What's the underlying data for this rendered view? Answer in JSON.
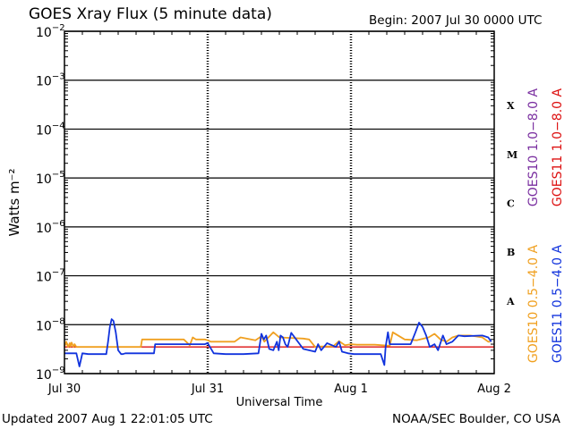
{
  "header": {
    "title": "GOES Xray Flux (5 minute data)",
    "begin": "Begin:  2007 Jul 30 0000 UTC"
  },
  "footer": {
    "updated": "Updated 2007 Aug  1 22:01:05 UTC",
    "credit": "NOAA/SEC Boulder, CO USA"
  },
  "colors": {
    "goes10_long": "#7a2fa0",
    "goes11_long": "#dd1111",
    "goes10_short": "#f0a020",
    "goes11_short": "#1133dd",
    "grid": "#000000"
  },
  "chart_data": {
    "type": "line",
    "title": "GOES Xray Flux (5 minute data)",
    "xlabel": "Universal Time",
    "ylabel": "Watts m⁻²",
    "y_scale": "log",
    "ylim": [
      1e-09,
      0.01
    ],
    "xlim": [
      0,
      72
    ],
    "x_units": "hours since 2007 Jul 30 0000 UTC",
    "y_ticks": [
      {
        "value": 1e-09,
        "base": "10",
        "exp": "−9"
      },
      {
        "value": 1e-08,
        "base": "10",
        "exp": "−8"
      },
      {
        "value": 1e-07,
        "base": "10",
        "exp": "−7"
      },
      {
        "value": 1e-06,
        "base": "10",
        "exp": "−6"
      },
      {
        "value": 1e-05,
        "base": "10",
        "exp": "−5"
      },
      {
        "value": 0.0001,
        "base": "10",
        "exp": "−4"
      },
      {
        "value": 0.001,
        "base": "10",
        "exp": "−3"
      },
      {
        "value": 0.01,
        "base": "10",
        "exp": "−2"
      }
    ],
    "x_ticks": [
      {
        "x": 0,
        "label": "Jul 30"
      },
      {
        "x": 24,
        "label": "Jul 31"
      },
      {
        "x": 48,
        "label": "Aug 1"
      },
      {
        "x": 72,
        "label": "Aug 2"
      }
    ],
    "flare_classes": [
      {
        "label": "A",
        "value": 3.16e-08
      },
      {
        "label": "B",
        "value": 3.16e-07
      },
      {
        "label": "C",
        "value": 3.16e-06
      },
      {
        "label": "M",
        "value": 3.16e-05
      },
      {
        "label": "X",
        "value": 0.000316
      }
    ],
    "series": [
      {
        "name": "GOES10 1.0−8.0 A",
        "color": "#7a2fa0",
        "x": [],
        "y": []
      },
      {
        "name": "GOES11 1.0−8.0 A",
        "color": "#dd1111",
        "x": [
          0,
          72
        ],
        "y": [
          3.5e-09,
          3.5e-09
        ]
      },
      {
        "name": "GOES10 0.5−4.0 A",
        "color": "#f0a020",
        "x": [
          0,
          0.3,
          0.6,
          0.9,
          1.0,
          1.2,
          1.5,
          1.7,
          2.0,
          12.8,
          13.0,
          15.0,
          17.0,
          20.0,
          21.0,
          21.5,
          22.0,
          23.5,
          24.0,
          24.5,
          28.5,
          29.5,
          32.0,
          33.0,
          33.5,
          35.0,
          36.0,
          40.0,
          41.0,
          42.0,
          43.0,
          45.0,
          46.0,
          47.0,
          48.0,
          49.0,
          52.0,
          54.5,
          55.0,
          57.0,
          59.0,
          61.0,
          62.0,
          63.0,
          64.0,
          65.0,
          66.0,
          68.0,
          70.0,
          71.0,
          71.3
        ],
        "y": [
          3.6e-09,
          4.5e-09,
          3.5e-09,
          4.2e-09,
          3.6e-09,
          4.3e-09,
          3.5e-09,
          4e-09,
          3.5e-09,
          3.5e-09,
          5e-09,
          5e-09,
          5e-09,
          5e-09,
          3.8e-09,
          5.5e-09,
          5e-09,
          5e-09,
          4.8e-09,
          4.5e-09,
          4.5e-09,
          5.5e-09,
          4.8e-09,
          5.8e-09,
          4.5e-09,
          7e-09,
          5.5e-09,
          5.2e-09,
          5e-09,
          3.5e-09,
          3.6e-09,
          3.6e-09,
          4.6e-09,
          3.8e-09,
          4e-09,
          3.9e-09,
          3.9e-09,
          3.7e-09,
          7e-09,
          5e-09,
          4.8e-09,
          5.5e-09,
          6.5e-09,
          5e-09,
          4.5e-09,
          5.5e-09,
          6e-09,
          6e-09,
          5.5e-09,
          4.5e-09,
          4.5e-09
        ]
      },
      {
        "name": "GOES11 0.5−4.0 A",
        "color": "#1133dd",
        "x": [
          0,
          2.0,
          2.5,
          3.0,
          4.0,
          7.0,
          7.3,
          7.6,
          7.9,
          8.2,
          8.6,
          9.0,
          9.5,
          9.8,
          10.2,
          15.0,
          15.2,
          20.0,
          21.5,
          22.5,
          23.5,
          24.0,
          25.0,
          27.0,
          30.0,
          32.5,
          33.0,
          33.4,
          33.8,
          34.3,
          35.0,
          35.6,
          35.9,
          36.2,
          36.6,
          37.0,
          37.4,
          38.0,
          40.0,
          42.0,
          42.5,
          43.0,
          44.0,
          45.5,
          46.0,
          46.5,
          47.5,
          48.5,
          50.0,
          52.0,
          53.0,
          53.6,
          53.8,
          54.2,
          54.5,
          55.0,
          57.0,
          58.0,
          58.8,
          59.4,
          60.0,
          60.6,
          61.2,
          62.0,
          62.6,
          63.4,
          64.0,
          65.0,
          66.0,
          67.0,
          70.0,
          71.0,
          71.5
        ],
        "y": [
          2.6e-09,
          2.6e-09,
          1.4e-09,
          2.6e-09,
          2.5e-09,
          2.5e-09,
          4.5e-09,
          9e-09,
          1.3e-08,
          1.2e-08,
          7e-09,
          3e-09,
          2.5e-09,
          2.5e-09,
          2.6e-09,
          2.6e-09,
          4e-09,
          4e-09,
          4e-09,
          4e-09,
          4e-09,
          4.2e-09,
          2.6e-09,
          2.5e-09,
          2.5e-09,
          2.6e-09,
          6.5e-09,
          5e-09,
          6e-09,
          3.2e-09,
          3e-09,
          4.5e-09,
          3e-09,
          6e-09,
          5.5e-09,
          4e-09,
          3.5e-09,
          6.8e-09,
          3.2e-09,
          2.8e-09,
          4e-09,
          3e-09,
          4.2e-09,
          3.5e-09,
          4.5e-09,
          2.8e-09,
          2.6e-09,
          2.5e-09,
          2.5e-09,
          2.5e-09,
          2.5e-09,
          1.5e-09,
          3.5e-09,
          7e-09,
          4e-09,
          4e-09,
          4e-09,
          4e-09,
          7e-09,
          1.1e-08,
          9e-09,
          6e-09,
          3.5e-09,
          4e-09,
          3e-09,
          6e-09,
          4e-09,
          4.5e-09,
          6e-09,
          5.8e-09,
          6e-09,
          5.5e-09,
          4.5e-09
        ]
      }
    ]
  }
}
